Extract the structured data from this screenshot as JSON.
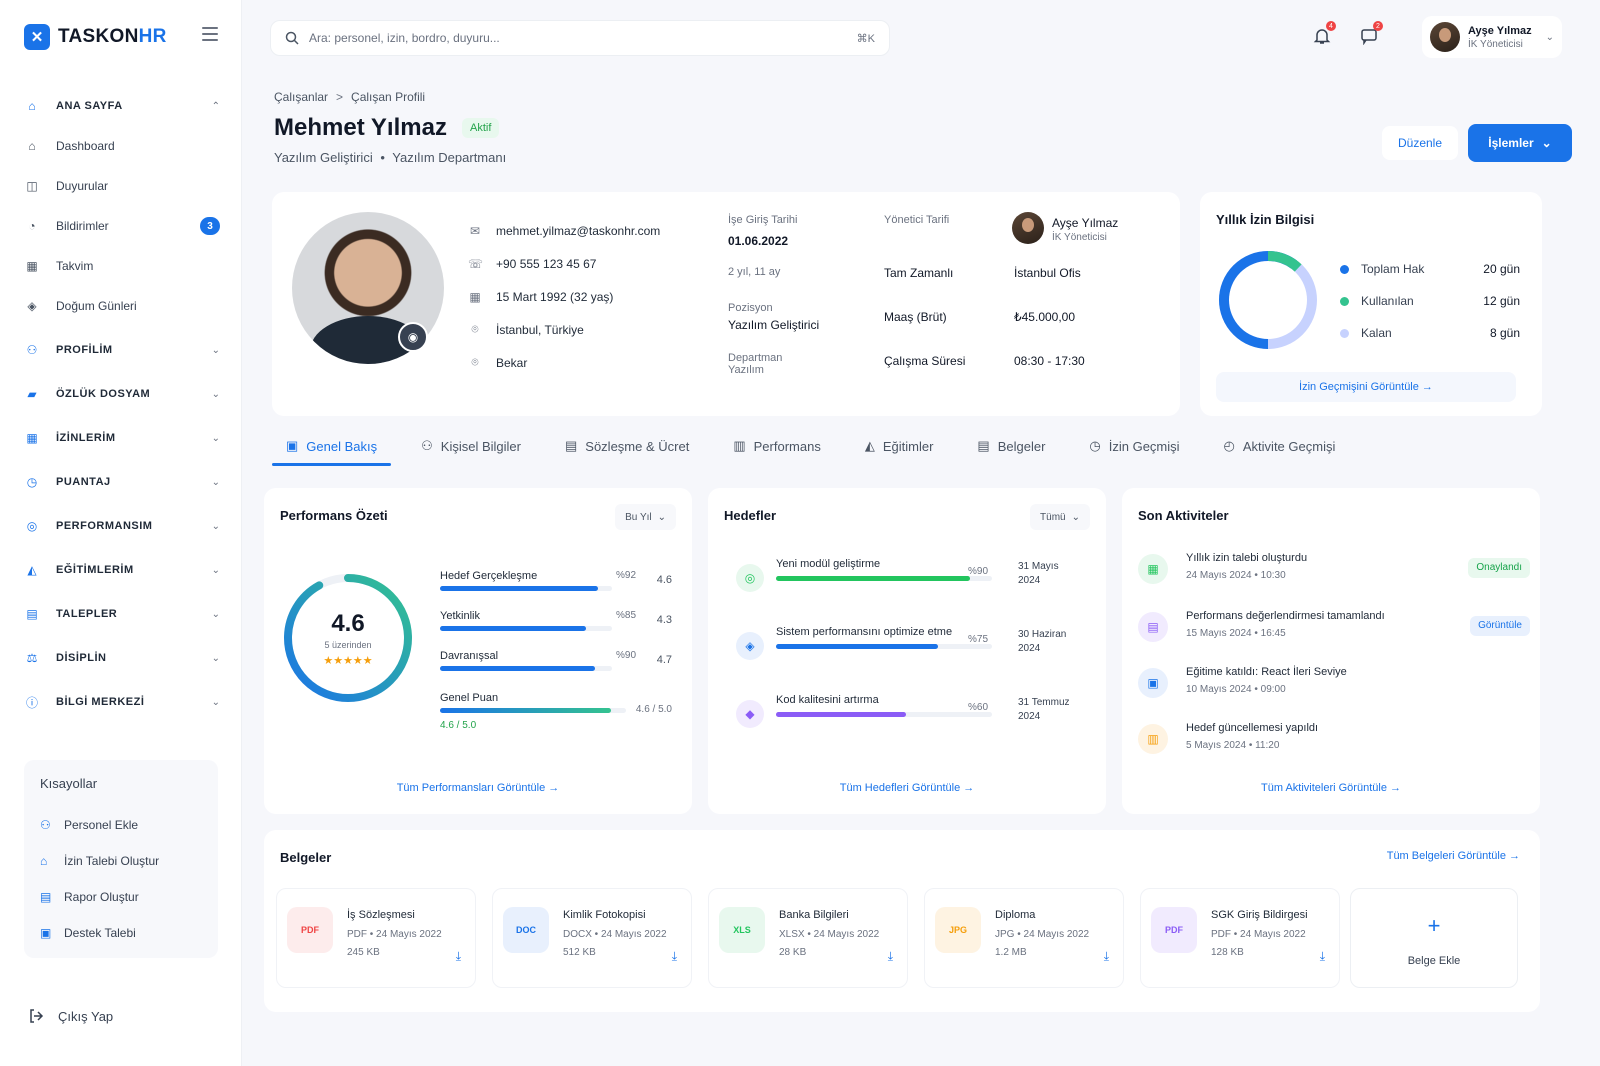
{
  "brand": {
    "name_a": "TASKON",
    "name_b": "HR",
    "mark": "✕"
  },
  "sidebar": {
    "items": [
      {
        "label": "ANA SAYFA",
        "icon": "home-icon",
        "section": true,
        "chevron": "⌃"
      },
      {
        "label": "Dashboard",
        "icon": "home-icon"
      },
      {
        "label": "Duyurular",
        "icon": "megaphone-icon"
      },
      {
        "label": "Bildirimler",
        "icon": "bell-icon",
        "badge": "3"
      },
      {
        "label": "Takvim",
        "icon": "calendar-icon"
      },
      {
        "label": "Doğum Günleri",
        "icon": "gift-icon"
      },
      {
        "label": "PROFİLİM",
        "icon": "user-icon",
        "section": true,
        "chevron": "⌄"
      },
      {
        "label": "ÖZLÜK DOSYAM",
        "icon": "folder-icon",
        "section": true,
        "chevron": "⌄"
      },
      {
        "label": "İZİNLERİM",
        "icon": "calendar-icon",
        "section": true,
        "chevron": "⌄"
      },
      {
        "label": "PUANTAJ",
        "icon": "clock-icon",
        "section": true,
        "chevron": "⌄"
      },
      {
        "label": "PERFORMANSIM",
        "icon": "target-icon",
        "section": true,
        "chevron": "⌄"
      },
      {
        "label": "EĞİTİMLERİM",
        "icon": "graduation-cap-icon",
        "section": true,
        "chevron": "⌄"
      },
      {
        "label": "TALEPLER",
        "icon": "document-icon",
        "section": true,
        "chevron": "⌄"
      },
      {
        "label": "DİSİPLİN",
        "icon": "scale-icon",
        "section": true,
        "chevron": "⌄"
      },
      {
        "label": "BİLGİ MERKEZİ",
        "icon": "info-icon",
        "section": true,
        "chevron": "⌄"
      }
    ],
    "shortcuts_title": "Kısayollar",
    "shortcuts": [
      "Personel Ekle",
      "İzin Talebi Oluştur",
      "Rapor Oluştur",
      "Destek Talebi"
    ],
    "logout": "Çıkış Yap"
  },
  "search": {
    "placeholder": "Ara: personel, izin, bordro, duyuru...",
    "shortcut": "⌘K"
  },
  "topbar": {
    "notif_count": "4",
    "msg_count": "2",
    "user_name": "Ayşe Yılmaz",
    "user_role": "İK Yöneticisi"
  },
  "breadcrumb": {
    "parent": "Çalışanlar",
    "sep": ">",
    "current": "Çalışan Profili"
  },
  "profile": {
    "name": "Mehmet Yılmaz",
    "status": "Aktif",
    "title": "Yazılım Geliştirici",
    "dot": "•",
    "department": "Yazılım Departmanı",
    "edit": "Düzenle",
    "actions": "İşlemler",
    "email": "mehmet.yilmaz@taskonhr.com",
    "phone": "+90 555 123 45 67",
    "birth": "15 Mart 1992 (32 yaş)",
    "location": "İstanbul, Türkiye",
    "marital": "Bekar",
    "start_label": "İşe Giriş Tarihi",
    "start_value": "01.06.2022",
    "tenure": "2 yıl, 11 ay",
    "position_label": "Pozisyon",
    "position_value": "Yazılım Geliştirici",
    "dept_label": "Departman",
    "dept_value": "Yazılım",
    "manager_label": "Yönetici Tarifi",
    "manager_name": "Ayşe Yılmaz",
    "manager_role": "İK Yöneticisi",
    "work_type": "Tam Zamanlı",
    "office": "İstanbul Ofis",
    "salary_label": "Maaş (Brüt)",
    "salary_value": "₺45.000,00",
    "hours_label": "Çalışma Süresi",
    "hours_value": "08:30 - 17:30"
  },
  "leave": {
    "title": "Yıllık İzin Bilgisi",
    "total": 20,
    "used": 12,
    "remaining": 8,
    "rows": [
      {
        "label": "Toplam Hak",
        "value": "20 gün",
        "color": "#1a73e8"
      },
      {
        "label": "Kullanılan",
        "value": "12 gün",
        "color": "#34c38f"
      },
      {
        "label": "Kalan",
        "value": "8 gün",
        "color": "#c7d2fe"
      }
    ],
    "link": "İzin Geçmişini Görüntüle →"
  },
  "tabs": [
    "Genel Bakış",
    "Kişisel Bilgiler",
    "Sözleşme & Ücret",
    "Performans",
    "Eğitimler",
    "Belgeler",
    "İzin Geçmişi",
    "Aktivite Geçmişi"
  ],
  "performance": {
    "title": "Performans Özeti",
    "filter": "Bu Yıl",
    "score": "4.6",
    "score_sub": "5 üzerinden",
    "stars": "★★★★★",
    "score_value": 4.6,
    "items": [
      {
        "label": "Hedef Gerçekleşme",
        "pct": "%92",
        "score": "4.6",
        "value": 0.92
      },
      {
        "label": "Yetkinlik",
        "pct": "%85",
        "score": "4.3",
        "value": 0.85
      },
      {
        "label": "Davranışsal",
        "pct": "%90",
        "score": "4.7",
        "value": 0.9
      }
    ],
    "overall_label": "Genel Puan",
    "overall_score": "4.6 / 5.0",
    "overall_value": 0.92,
    "link": "Tüm Performansları Görüntüle →"
  },
  "goals": {
    "title": "Hedefler",
    "filter": "Tümü",
    "items": [
      {
        "name": "Yeni modül geliştirme",
        "pct": "%90",
        "date": "31 Mayıs 2024",
        "value": 0.9,
        "color": "#22c55e",
        "bg": "#e8f8ee",
        "icon": "◎"
      },
      {
        "name": "Sistem performansını optimize etme",
        "pct": "%75",
        "date": "30 Haziran 2024",
        "value": 0.75,
        "color": "#1a73e8",
        "bg": "#e8f0fd",
        "icon": "◈"
      },
      {
        "name": "Kod kalitesini artırma",
        "pct": "%60",
        "date": "31 Temmuz 2024",
        "value": 0.6,
        "color": "#8b5cf6",
        "bg": "#f1ebfe",
        "icon": "◆"
      }
    ],
    "link": "Tüm Hedefleri Görüntüle →"
  },
  "activities": {
    "title": "Son Aktiviteler",
    "items": [
      {
        "title": "Yıllık izin talebi oluşturdu",
        "time": "24 Mayıs 2024 • 10:30",
        "tag": "Onaylandı",
        "tag_color": "#16a34a",
        "tag_bg": "#e8f8ee",
        "color": "#22c55e",
        "bg": "#e8f8ee",
        "icon": "▦"
      },
      {
        "title": "Performans değerlendirmesi tamamlandı",
        "time": "15 Mayıs 2024 • 16:45",
        "tag": "Görüntüle",
        "tag_color": "#1a73e8",
        "tag_bg": "#e8f0fd",
        "color": "#8b5cf6",
        "bg": "#f1ebfe",
        "icon": "▤"
      },
      {
        "title": "Eğitime katıldı: React İleri Seviye",
        "time": "10 Mayıs 2024 • 09:00",
        "color": "#1a73e8",
        "bg": "#e8f0fd",
        "icon": "▣"
      },
      {
        "title": "Hedef güncellemesi yapıldı",
        "time": "5 Mayıs 2024 • 11:20",
        "color": "#f59e0b",
        "bg": "#fef3e2",
        "icon": "▥"
      }
    ],
    "link": "Tüm Aktiviteleri Görüntüle →"
  },
  "documents": {
    "title": "Belgeler",
    "link": "Tüm Belgeleri Görüntüle →",
    "items": [
      {
        "name": "İş Sözleşmesi",
        "meta": "PDF • 24 Mayıs 2022",
        "size": "245 KB",
        "ext": "PDF",
        "color": "#ef4444",
        "bg": "#fdecec"
      },
      {
        "name": "Kimlik Fotokopisi",
        "meta": "DOCX • 24 Mayıs 2022",
        "size": "512 KB",
        "ext": "DOC",
        "color": "#1a73e8",
        "bg": "#e8f0fd"
      },
      {
        "name": "Banka Bilgileri",
        "meta": "XLSX • 24 Mayıs 2022",
        "size": "28 KB",
        "ext": "XLS",
        "color": "#22c55e",
        "bg": "#e8f8ee"
      },
      {
        "name": "Diploma",
        "meta": "JPG • 24 Mayıs 2022",
        "size": "1.2 MB",
        "ext": "JPG",
        "color": "#f59e0b",
        "bg": "#fef3e2"
      },
      {
        "name": "SGK Giriş Bildirgesi",
        "meta": "PDF • 24 Mayıs 2022",
        "size": "128 KB",
        "ext": "PDF",
        "color": "#8b5cf6",
        "bg": "#f1ebfe"
      }
    ],
    "add": "Belge Ekle"
  }
}
